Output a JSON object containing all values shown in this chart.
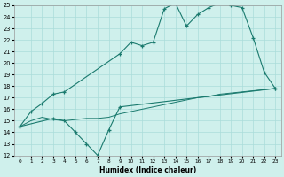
{
  "xlabel": "Humidex (Indice chaleur)",
  "line_color": "#1a7a6e",
  "bg_color": "#cff0ec",
  "grid_color": "#aaddda",
  "ylim": [
    12,
    25
  ],
  "xlim": [
    -0.5,
    23.5
  ],
  "yticks": [
    12,
    13,
    14,
    15,
    16,
    17,
    18,
    19,
    20,
    21,
    22,
    23,
    24,
    25
  ],
  "xticks": [
    0,
    1,
    2,
    3,
    4,
    5,
    6,
    7,
    8,
    9,
    10,
    11,
    12,
    13,
    14,
    15,
    16,
    17,
    18,
    19,
    20,
    21,
    22,
    23
  ],
  "x_max": [
    0,
    1,
    2,
    3,
    4,
    9,
    10,
    11,
    12,
    13,
    14,
    15,
    16,
    17,
    18,
    19,
    20,
    21,
    22,
    23
  ],
  "v_max": [
    14.5,
    15.8,
    16.5,
    17.3,
    17.5,
    20.8,
    21.8,
    21.5,
    21.8,
    24.7,
    25.2,
    23.2,
    24.2,
    24.8,
    25.2,
    25.0,
    24.8,
    22.2,
    19.2,
    17.8
  ],
  "x_min": [
    0,
    3,
    4,
    5,
    6,
    7,
    8,
    9,
    23
  ],
  "v_min": [
    14.5,
    15.2,
    15.0,
    14.0,
    13.0,
    12.0,
    14.2,
    16.2,
    17.8
  ],
  "x_avg": [
    0,
    1,
    2,
    3,
    4,
    5,
    6,
    7,
    8,
    9,
    10,
    11,
    12,
    13,
    14,
    15,
    16,
    17,
    18,
    19,
    20,
    21,
    22,
    23
  ],
  "v_avg": [
    14.5,
    15.0,
    15.3,
    15.1,
    15.0,
    15.1,
    15.2,
    15.2,
    15.3,
    15.6,
    15.8,
    16.0,
    16.2,
    16.4,
    16.6,
    16.8,
    17.0,
    17.1,
    17.3,
    17.4,
    17.5,
    17.6,
    17.7,
    17.8
  ]
}
